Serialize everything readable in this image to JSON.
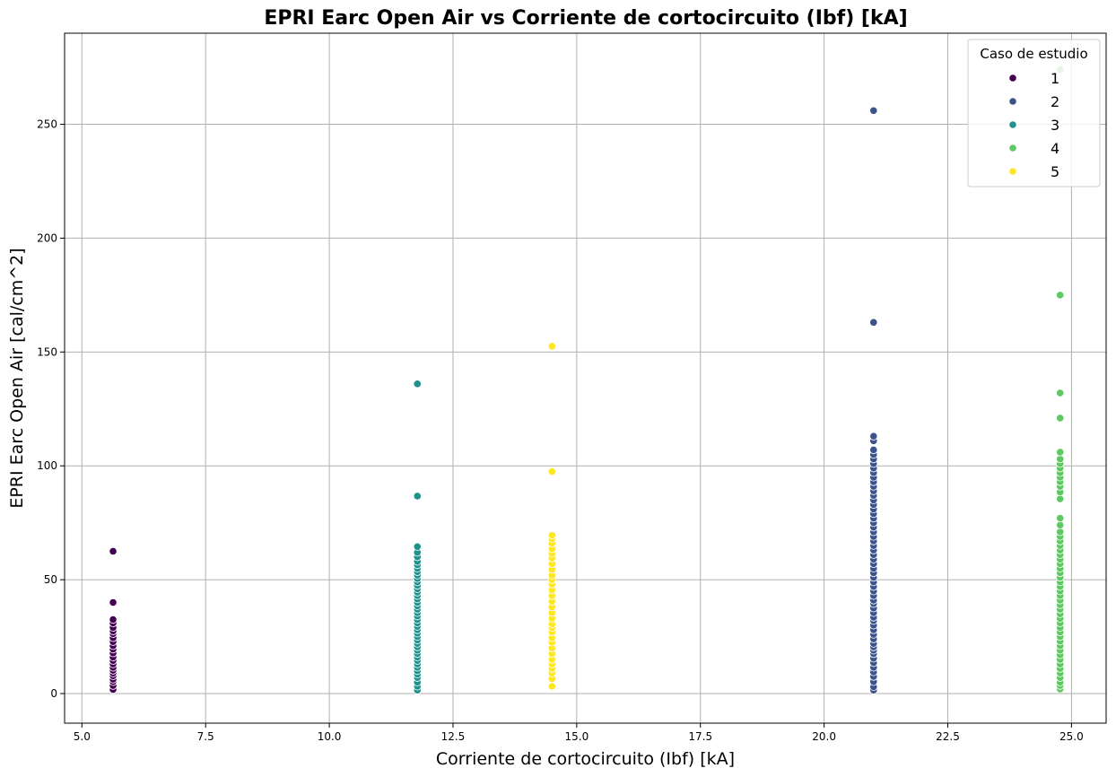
{
  "chart_data": {
    "type": "scatter",
    "title": "EPRI Earc Open Air vs Corriente de cortocircuito (Ibf) [kA]",
    "xlabel": "Corriente de cortocircuito (Ibf) [kA]",
    "ylabel": "EPRI Earc Open Air [cal/cm^2]",
    "xlim": [
      4.65,
      25.7
    ],
    "ylim": [
      -13,
      290
    ],
    "xticks": [
      5.0,
      7.5,
      10.0,
      12.5,
      15.0,
      17.5,
      20.0,
      22.5,
      25.0
    ],
    "xtick_labels": [
      "5.0",
      "7.5",
      "10.0",
      "12.5",
      "15.0",
      "17.5",
      "20.0",
      "22.5",
      "25.0"
    ],
    "yticks": [
      0,
      50,
      100,
      150,
      200,
      250
    ],
    "ytick_labels": [
      "0",
      "50",
      "100",
      "150",
      "200",
      "250"
    ],
    "grid": true,
    "legend": {
      "title": "Caso de estudio",
      "placement": "top-right"
    },
    "series": [
      {
        "name": "1",
        "color": "#440154",
        "x": 5.63,
        "y": [
          1.8,
          3.5,
          5.2,
          6.3,
          7.8,
          9.0,
          10.2,
          11.5,
          13.0,
          14.5,
          16.0,
          17.8,
          19.5,
          21.0,
          22.8,
          24.5,
          26.3,
          27.5,
          29.0,
          31.0,
          32.5,
          40.0,
          62.5
        ]
      },
      {
        "name": "2",
        "color": "#3b528b",
        "x": 21.0,
        "y": [
          1.5,
          3.0,
          5.2,
          7.5,
          9.5,
          11.5,
          13.5,
          15.5,
          17.5,
          19.0,
          20.5,
          22.0,
          24.0,
          26.0,
          28.0,
          30.0,
          32.0,
          33.5,
          35.5,
          37.5,
          39.5,
          41.0,
          43.0,
          45.0,
          47.0,
          49.0,
          51.0,
          53.0,
          55.0,
          57.0,
          59.0,
          61.0,
          63.0,
          65.0,
          67.0,
          69.0,
          71.0,
          73.0,
          75.0,
          77.0,
          79.0,
          81.0,
          83.0,
          85.0,
          87.0,
          89.0,
          91.0,
          93.0,
          95.0,
          97.0,
          99.0,
          101.0,
          103.0,
          105.0,
          107.0,
          111.0,
          113.0,
          163.0,
          256.0
        ]
      },
      {
        "name": "3",
        "color": "#21918c",
        "x": 11.78,
        "y": [
          1.5,
          3.2,
          5.0,
          7.0,
          8.5,
          10.0,
          11.5,
          13.0,
          14.5,
          16.0,
          17.5,
          19.0,
          20.5,
          22.0,
          23.5,
          25.0,
          26.5,
          28.0,
          29.5,
          31.0,
          32.5,
          34.0,
          35.5,
          37.0,
          38.5,
          40.0,
          41.5,
          43.0,
          44.5,
          46.0,
          47.5,
          49.0,
          50.5,
          52.0,
          53.5,
          55.0,
          56.5,
          58.0,
          60.0,
          62.0,
          64.5,
          86.7,
          136.0
        ]
      },
      {
        "name": "4",
        "color": "#5ec962",
        "x": 24.77,
        "y": [
          2.0,
          3.5,
          5.0,
          7.0,
          9.0,
          11.0,
          13.0,
          15.0,
          17.0,
          19.0,
          21.0,
          23.0,
          25.0,
          27.0,
          29.0,
          31.0,
          33.0,
          35.0,
          37.0,
          39.0,
          41.0,
          43.0,
          45.0,
          47.0,
          49.0,
          51.0,
          53.0,
          55.0,
          57.0,
          59.0,
          61.0,
          63.0,
          65.0,
          67.0,
          69.0,
          71.0,
          74.0,
          77.0,
          85.5,
          88.5,
          91.0,
          93.0,
          95.0,
          97.0,
          99.0,
          101.0,
          103.0,
          106.0,
          121.0,
          132.0,
          175.0,
          274.0
        ]
      },
      {
        "name": "5",
        "color": "#fde725",
        "x": 14.5,
        "y": [
          3.2,
          6.5,
          9.0,
          11.0,
          13.0,
          15.0,
          17.5,
          20.0,
          22.5,
          24.5,
          27.0,
          29.0,
          30.5,
          33.0,
          35.5,
          38.0,
          40.5,
          43.0,
          45.5,
          48.0,
          50.0,
          52.0,
          54.5,
          57.0,
          59.5,
          61.5,
          63.5,
          66.0,
          68.0,
          69.5,
          97.5,
          152.5
        ]
      }
    ]
  }
}
